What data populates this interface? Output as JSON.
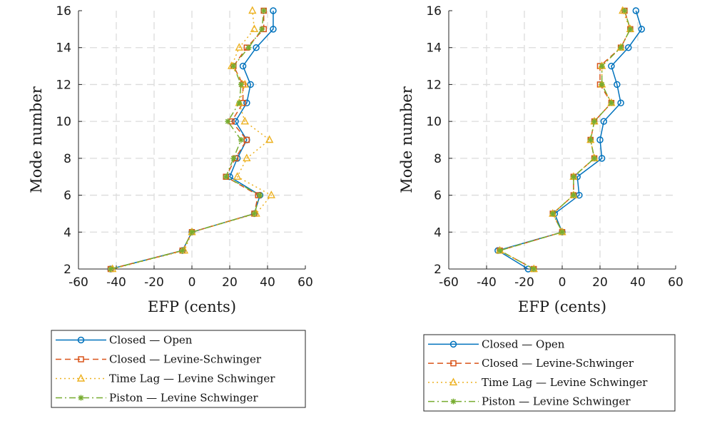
{
  "chart_data": [
    {
      "type": "line",
      "xlabel": "EFP (cents)",
      "ylabel": "Mode number",
      "xlim": [
        -60,
        60
      ],
      "ylim": [
        2,
        16
      ],
      "xticks": [
        -60,
        -40,
        -20,
        0,
        20,
        40,
        60
      ],
      "yticks": [
        2,
        4,
        6,
        8,
        10,
        12,
        14,
        16
      ],
      "grid": true,
      "legend_position": "below",
      "y": [
        2,
        3,
        4,
        5,
        6,
        7,
        8,
        9,
        10,
        11,
        12,
        13,
        14,
        15,
        16
      ],
      "series": [
        {
          "name": "Closed — Open",
          "color": "#0072BD",
          "line": "solid",
          "marker": "circle",
          "x": [
            -43,
            -5,
            0,
            33,
            36,
            20,
            24,
            29,
            23,
            29,
            31,
            27,
            34,
            43,
            43
          ]
        },
        {
          "name": "Closed — Levine-Schwinger",
          "color": "#D95319",
          "line": "dashed",
          "marker": "square",
          "x": [
            -43,
            -5,
            0,
            33,
            35,
            18,
            23,
            29,
            21,
            27,
            27,
            22,
            29,
            38,
            38
          ]
        },
        {
          "name": "Time Lag — Levine Schwinger",
          "color": "#EDB120",
          "line": "dotted",
          "marker": "triangle",
          "x": [
            -42,
            -4,
            0,
            34,
            42,
            24,
            29,
            41,
            28,
            25,
            28,
            21,
            25,
            33,
            32
          ]
        },
        {
          "name": "Piston — Levine Schwinger",
          "color": "#77AC30",
          "line": "dashdot",
          "marker": "asterisk",
          "x": [
            -43,
            -5,
            0,
            33,
            36,
            18,
            22,
            26,
            19,
            25,
            26,
            22,
            30,
            37,
            38
          ]
        }
      ]
    },
    {
      "type": "line",
      "xlabel": "EFP (cents)",
      "ylabel": "Mode number",
      "xlim": [
        -60,
        60
      ],
      "ylim": [
        2,
        16
      ],
      "xticks": [
        -60,
        -40,
        -20,
        0,
        20,
        40,
        60
      ],
      "yticks": [
        2,
        4,
        6,
        8,
        10,
        12,
        14,
        16
      ],
      "grid": true,
      "legend_position": "below",
      "y": [
        2,
        3,
        4,
        5,
        6,
        7,
        8,
        9,
        10,
        11,
        12,
        13,
        14,
        15,
        16
      ],
      "series": [
        {
          "name": "Closed — Open",
          "color": "#0072BD",
          "line": "solid",
          "marker": "circle",
          "x": [
            -18,
            -34,
            0,
            -4,
            9,
            8,
            21,
            20,
            22,
            31,
            29,
            26,
            35,
            42,
            39
          ]
        },
        {
          "name": "Closed — Levine-Schwinger",
          "color": "#D95319",
          "line": "dashed",
          "marker": "square",
          "x": [
            -15,
            -33,
            0,
            -5,
            6,
            6,
            17,
            15,
            17,
            26,
            20,
            20,
            31,
            36,
            33
          ]
        },
        {
          "name": "Time Lag — Levine Schwinger",
          "color": "#EDB120",
          "line": "dotted",
          "marker": "triangle",
          "x": [
            -15,
            -33,
            0,
            -5,
            6,
            6,
            17,
            15,
            17,
            26,
            21,
            21,
            31,
            36,
            32
          ]
        },
        {
          "name": "Piston — Levine Schwinger",
          "color": "#77AC30",
          "line": "dashdot",
          "marker": "asterisk",
          "x": [
            -15,
            -33,
            0,
            -5,
            6,
            6,
            17,
            15,
            17,
            26,
            21,
            21,
            31,
            36,
            33
          ]
        }
      ]
    }
  ]
}
